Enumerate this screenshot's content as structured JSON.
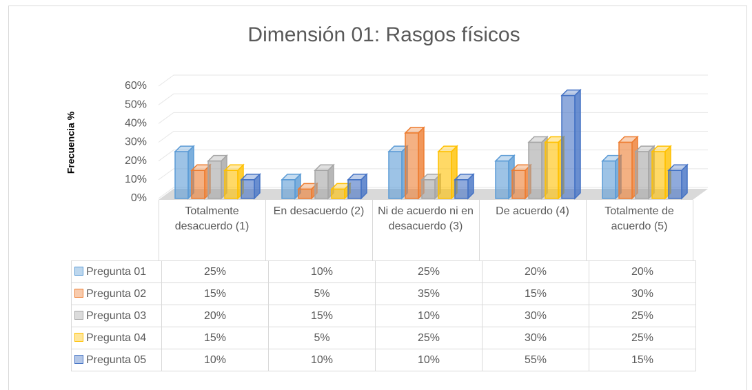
{
  "chart_data": {
    "type": "bar3d",
    "title": "Dimensión 01: Rasgos físicos",
    "y_label": "Frecuencia %",
    "categories": [
      "Totalmente desacuerdo (1)",
      "En desacuerdo (2)",
      "Ni de acuerdo ni en desacuerdo (3)",
      "De acuerdo (4)",
      "Totalmente de acuerdo (5)"
    ],
    "ylim": [
      0,
      60
    ],
    "yticks": [
      {
        "value": 0,
        "label": "0%"
      },
      {
        "value": 10,
        "label": "10%"
      },
      {
        "value": 20,
        "label": "20%"
      },
      {
        "value": 30,
        "label": "30%"
      },
      {
        "value": 40,
        "label": "40%"
      },
      {
        "value": 50,
        "label": "50%"
      },
      {
        "value": 60,
        "label": "60%"
      }
    ],
    "grid": true,
    "series": [
      {
        "name": "Pregunta 01",
        "color": "#5b9bd5",
        "values": [
          25,
          10,
          25,
          20,
          20
        ],
        "value_labels": [
          "25%",
          "10%",
          "25%",
          "20%",
          "20%"
        ]
      },
      {
        "name": "Pregunta 02",
        "color": "#ed7d31",
        "values": [
          15,
          5,
          35,
          15,
          30
        ],
        "value_labels": [
          "15%",
          "5%",
          "35%",
          "15%",
          "30%"
        ]
      },
      {
        "name": "Pregunta 03",
        "color": "#a5a5a5",
        "values": [
          20,
          15,
          10,
          30,
          25
        ],
        "value_labels": [
          "20%",
          "15%",
          "10%",
          "30%",
          "25%"
        ]
      },
      {
        "name": "Pregunta 04",
        "color": "#ffc000",
        "values": [
          15,
          5,
          25,
          30,
          25
        ],
        "value_labels": [
          "15%",
          "5%",
          "25%",
          "30%",
          "25%"
        ]
      },
      {
        "name": "Pregunta 05",
        "color": "#4472c4",
        "values": [
          10,
          10,
          10,
          55,
          15
        ],
        "value_labels": [
          "10%",
          "10%",
          "10%",
          "55%",
          "15%"
        ]
      }
    ]
  }
}
